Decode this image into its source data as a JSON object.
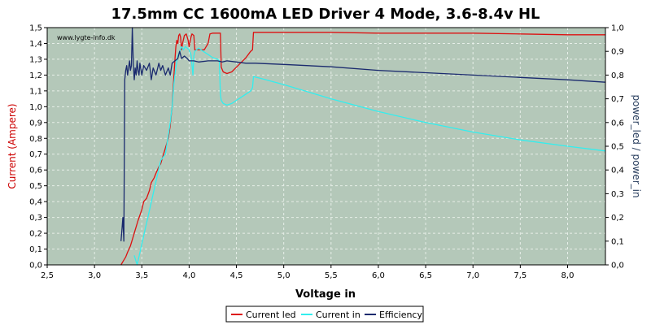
{
  "chart_data": {
    "type": "line",
    "title": "17.5mm CC 1600mA LED Driver 4 Mode, 3.6-8.4v HL",
    "watermark": "www.lygte-info.dk",
    "xlabel": "Voltage in",
    "ylabel_left": "Current (Ampere)",
    "ylabel_right": "power_led / power_in",
    "xlim": [
      2.5,
      8.4
    ],
    "ylim_left": [
      0,
      1.5
    ],
    "ylim_right": [
      0,
      1.0
    ],
    "xticks": [
      "2,5",
      "3,0",
      "3,5",
      "4,0",
      "4,5",
      "5,0",
      "5,5",
      "6,0",
      "6,5",
      "7,0",
      "7,5",
      "8,0"
    ],
    "xtick_values": [
      2.5,
      3.0,
      3.5,
      4.0,
      4.5,
      5.0,
      5.5,
      6.0,
      6.5,
      7.0,
      7.5,
      8.0
    ],
    "yticks_left": [
      "0,0",
      "0,1",
      "0,2",
      "0,3",
      "0,4",
      "0,5",
      "0,6",
      "0,7",
      "0,8",
      "0,9",
      "1,0",
      "1,1",
      "1,2",
      "1,3",
      "1,4",
      "1,5"
    ],
    "ytick_left_values": [
      0,
      0.1,
      0.2,
      0.3,
      0.4,
      0.5,
      0.6,
      0.7,
      0.8,
      0.9,
      1.0,
      1.1,
      1.2,
      1.3,
      1.4,
      1.5
    ],
    "yticks_right": [
      "0,0",
      "0,1",
      "0,2",
      "0,3",
      "0,4",
      "0,5",
      "0,6",
      "0,7",
      "0,8",
      "0,9",
      "1,0"
    ],
    "ytick_right_values": [
      0,
      0.1,
      0.2,
      0.3,
      0.4,
      0.5,
      0.6,
      0.7,
      0.8,
      0.9,
      1.0
    ],
    "grid": true,
    "legend_position": "bottom-center",
    "colors": {
      "plot_bg": "#b4c8b9",
      "grid": "#e6eee8",
      "current_led": "#dd1111",
      "current_in": "#33eeee",
      "efficiency": "#1a2a6e"
    },
    "series": [
      {
        "name": "Current led",
        "axis": "left",
        "color": "#dd1111",
        "points": [
          [
            3.28,
            0.0
          ],
          [
            3.3,
            0.02
          ],
          [
            3.33,
            0.05
          ],
          [
            3.35,
            0.08
          ],
          [
            3.38,
            0.12
          ],
          [
            3.4,
            0.16
          ],
          [
            3.43,
            0.22
          ],
          [
            3.46,
            0.28
          ],
          [
            3.5,
            0.35
          ],
          [
            3.52,
            0.4
          ],
          [
            3.55,
            0.42
          ],
          [
            3.58,
            0.47
          ],
          [
            3.6,
            0.52
          ],
          [
            3.63,
            0.55
          ],
          [
            3.65,
            0.58
          ],
          [
            3.68,
            0.62
          ],
          [
            3.7,
            0.64
          ],
          [
            3.73,
            0.7
          ],
          [
            3.76,
            0.76
          ],
          [
            3.78,
            0.8
          ],
          [
            3.8,
            0.88
          ],
          [
            3.82,
            1.0
          ],
          [
            3.83,
            1.1
          ],
          [
            3.84,
            1.2
          ],
          [
            3.85,
            1.3
          ],
          [
            3.86,
            1.38
          ],
          [
            3.87,
            1.42
          ],
          [
            3.88,
            1.4
          ],
          [
            3.89,
            1.45
          ],
          [
            3.9,
            1.46
          ],
          [
            3.91,
            1.44
          ],
          [
            3.92,
            1.36
          ],
          [
            3.93,
            1.4
          ],
          [
            3.95,
            1.45
          ],
          [
            3.97,
            1.46
          ],
          [
            3.99,
            1.42
          ],
          [
            4.0,
            1.38
          ],
          [
            4.02,
            1.44
          ],
          [
            4.03,
            1.46
          ],
          [
            4.05,
            1.45
          ],
          [
            4.06,
            1.36
          ],
          [
            4.08,
            1.36
          ],
          [
            4.1,
            1.36
          ],
          [
            4.12,
            1.36
          ],
          [
            4.14,
            1.36
          ],
          [
            4.16,
            1.36
          ],
          [
            4.2,
            1.4
          ],
          [
            4.22,
            1.46
          ],
          [
            4.25,
            1.465
          ],
          [
            4.3,
            1.465
          ],
          [
            4.33,
            1.465
          ],
          [
            4.34,
            1.25
          ],
          [
            4.36,
            1.22
          ],
          [
            4.4,
            1.21
          ],
          [
            4.45,
            1.22
          ],
          [
            4.5,
            1.25
          ],
          [
            4.55,
            1.28
          ],
          [
            4.6,
            1.31
          ],
          [
            4.65,
            1.35
          ],
          [
            4.67,
            1.36
          ],
          [
            4.68,
            1.47
          ],
          [
            5.0,
            1.47
          ],
          [
            5.5,
            1.47
          ],
          [
            6.0,
            1.465
          ],
          [
            6.5,
            1.465
          ],
          [
            7.0,
            1.465
          ],
          [
            7.5,
            1.46
          ],
          [
            8.0,
            1.455
          ],
          [
            8.4,
            1.455
          ]
        ]
      },
      {
        "name": "Current in",
        "axis": "left",
        "color": "#33eeee",
        "points": [
          [
            3.42,
            0.06
          ],
          [
            3.45,
            0.0
          ],
          [
            3.7,
            0.66
          ],
          [
            3.75,
            0.7
          ],
          [
            3.8,
            0.9
          ],
          [
            3.82,
            1.0
          ],
          [
            3.84,
            1.15
          ],
          [
            3.86,
            1.25
          ],
          [
            3.88,
            1.32
          ],
          [
            3.9,
            1.35
          ],
          [
            3.92,
            1.38
          ],
          [
            3.94,
            1.36
          ],
          [
            3.96,
            1.38
          ],
          [
            4.0,
            1.36
          ],
          [
            4.02,
            1.33
          ],
          [
            4.04,
            1.2
          ],
          [
            4.05,
            1.32
          ],
          [
            4.06,
            1.35
          ],
          [
            4.08,
            1.36
          ],
          [
            4.1,
            1.37
          ],
          [
            4.15,
            1.35
          ],
          [
            4.2,
            1.33
          ],
          [
            4.25,
            1.31
          ],
          [
            4.3,
            1.3
          ],
          [
            4.32,
            1.29
          ],
          [
            4.33,
            1.08
          ],
          [
            4.34,
            1.04
          ],
          [
            4.36,
            1.02
          ],
          [
            4.4,
            1.01
          ],
          [
            4.45,
            1.02
          ],
          [
            4.5,
            1.04
          ],
          [
            4.55,
            1.06
          ],
          [
            4.6,
            1.08
          ],
          [
            4.65,
            1.1
          ],
          [
            4.67,
            1.12
          ],
          [
            4.68,
            1.19
          ],
          [
            4.75,
            1.18
          ],
          [
            5.0,
            1.14
          ],
          [
            5.5,
            1.05
          ],
          [
            6.0,
            0.97
          ],
          [
            6.5,
            0.9
          ],
          [
            7.0,
            0.84
          ],
          [
            7.5,
            0.79
          ],
          [
            8.0,
            0.75
          ],
          [
            8.4,
            0.72
          ]
        ]
      },
      {
        "name": "Efficiency",
        "axis": "right",
        "color": "#1a2a6e",
        "points": [
          [
            3.28,
            0.1
          ],
          [
            3.29,
            0.15
          ],
          [
            3.3,
            0.2
          ],
          [
            3.31,
            0.1
          ],
          [
            3.32,
            0.78
          ],
          [
            3.33,
            0.82
          ],
          [
            3.34,
            0.84
          ],
          [
            3.35,
            0.8
          ],
          [
            3.36,
            0.83
          ],
          [
            3.37,
            0.86
          ],
          [
            3.38,
            0.82
          ],
          [
            3.39,
            0.84
          ],
          [
            3.4,
            1.0
          ],
          [
            3.41,
            0.85
          ],
          [
            3.42,
            0.78
          ],
          [
            3.43,
            0.83
          ],
          [
            3.44,
            0.8
          ],
          [
            3.45,
            0.86
          ],
          [
            3.46,
            0.82
          ],
          [
            3.47,
            0.8
          ],
          [
            3.48,
            0.85
          ],
          [
            3.5,
            0.8
          ],
          [
            3.52,
            0.84
          ],
          [
            3.55,
            0.82
          ],
          [
            3.58,
            0.85
          ],
          [
            3.6,
            0.78
          ],
          [
            3.62,
            0.83
          ],
          [
            3.65,
            0.8
          ],
          [
            3.68,
            0.85
          ],
          [
            3.7,
            0.82
          ],
          [
            3.72,
            0.84
          ],
          [
            3.75,
            0.8
          ],
          [
            3.78,
            0.83
          ],
          [
            3.8,
            0.8
          ],
          [
            3.82,
            0.85
          ],
          [
            3.85,
            0.86
          ],
          [
            3.88,
            0.87
          ],
          [
            3.9,
            0.9
          ],
          [
            3.92,
            0.87
          ],
          [
            3.95,
            0.88
          ],
          [
            3.98,
            0.87
          ],
          [
            4.0,
            0.86
          ],
          [
            4.05,
            0.86
          ],
          [
            4.1,
            0.855
          ],
          [
            4.2,
            0.86
          ],
          [
            4.3,
            0.86
          ],
          [
            4.35,
            0.855
          ],
          [
            4.4,
            0.86
          ],
          [
            4.5,
            0.855
          ],
          [
            4.6,
            0.85
          ],
          [
            4.7,
            0.85
          ],
          [
            5.0,
            0.845
          ],
          [
            5.5,
            0.835
          ],
          [
            6.0,
            0.82
          ],
          [
            6.5,
            0.81
          ],
          [
            7.0,
            0.8
          ],
          [
            7.5,
            0.79
          ],
          [
            8.0,
            0.78
          ],
          [
            8.4,
            0.77
          ]
        ]
      }
    ]
  }
}
